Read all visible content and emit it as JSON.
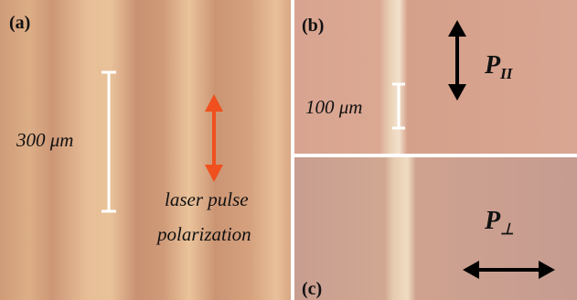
{
  "panels": [
    {
      "label": "(a)",
      "scale_bar": "300 μm",
      "annotation": [
        "laser pulse",
        "polarization"
      ]
    },
    {
      "label": "(b)",
      "scale_bar": "100 μm",
      "polarization": {
        "symbol": "P",
        "subscript": "II"
      }
    },
    {
      "label": "(c)",
      "polarization": {
        "symbol": "P",
        "subscript": "⊥"
      }
    }
  ]
}
